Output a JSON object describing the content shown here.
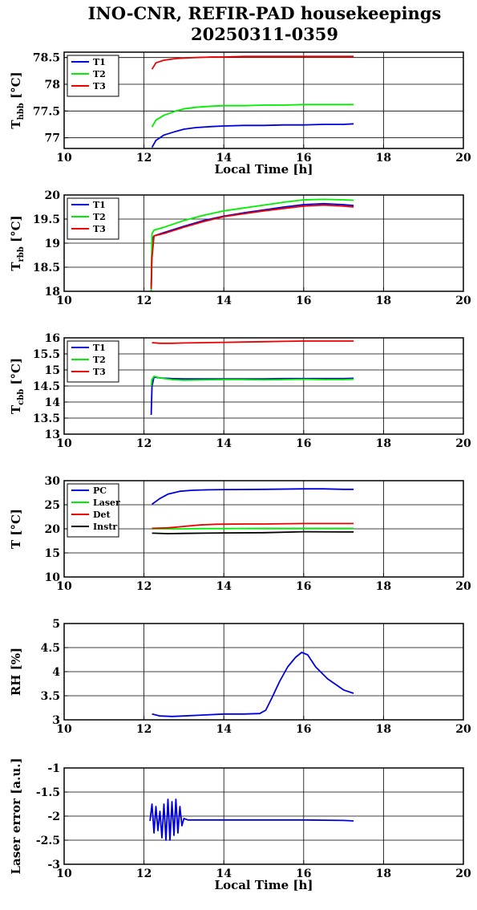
{
  "title_line1": "INO-CNR, REFIR-PAD housekeepings",
  "title_line2": "20250311-0359",
  "colors": {
    "blue": "#0000dd",
    "green": "#00ee00",
    "red": "#ee0000",
    "black": "#000000"
  },
  "chart_data": [
    {
      "type": "line",
      "ylabel": "T",
      "ylabel_sub": "hbb",
      "ylabel_unit": " [°C]",
      "xlabel": "Local Time [h]",
      "xlim": [
        10,
        20
      ],
      "ylim": [
        76.8,
        78.6
      ],
      "yticks": [
        77,
        77.5,
        78,
        78.5
      ],
      "ytick_labels": [
        "77",
        "77.5",
        "78",
        "78.5"
      ],
      "xticks": [
        10,
        12,
        14,
        16,
        18,
        20
      ],
      "xtick_labels": [
        "10",
        "12",
        "14",
        "16",
        "18",
        "20"
      ],
      "grid": true,
      "legend": "top-left",
      "series": [
        {
          "name": "T1",
          "color": "blue",
          "x": [
            12.2,
            12.3,
            12.5,
            12.8,
            13.0,
            13.3,
            13.7,
            14.0,
            14.5,
            15.0,
            15.5,
            16.0,
            16.5,
            17.0,
            17.25
          ],
          "values": [
            76.82,
            76.95,
            77.05,
            77.12,
            77.16,
            77.19,
            77.21,
            77.22,
            77.23,
            77.23,
            77.24,
            77.24,
            77.25,
            77.25,
            77.26
          ]
        },
        {
          "name": "T2",
          "color": "green",
          "x": [
            12.2,
            12.3,
            12.5,
            12.8,
            13.0,
            13.3,
            13.7,
            14.0,
            14.5,
            15.0,
            15.5,
            16.0,
            16.5,
            17.0,
            17.25
          ],
          "values": [
            77.2,
            77.33,
            77.42,
            77.5,
            77.54,
            77.57,
            77.59,
            77.6,
            77.6,
            77.61,
            77.61,
            77.62,
            77.62,
            77.62,
            77.62
          ]
        },
        {
          "name": "T3",
          "color": "red",
          "x": [
            12.2,
            12.3,
            12.5,
            12.8,
            13.0,
            13.3,
            13.7,
            14.0,
            14.5,
            15.0,
            15.5,
            16.0,
            16.5,
            17.0,
            17.25
          ],
          "values": [
            78.28,
            78.4,
            78.45,
            78.48,
            78.49,
            78.5,
            78.51,
            78.51,
            78.52,
            78.52,
            78.52,
            78.52,
            78.52,
            78.52,
            78.52
          ]
        }
      ]
    },
    {
      "type": "line",
      "ylabel": "T",
      "ylabel_sub": "rbb",
      "ylabel_unit": " [°C]",
      "xlabel": "",
      "xlim": [
        10,
        20
      ],
      "ylim": [
        18,
        20
      ],
      "yticks": [
        18,
        18.5,
        19,
        19.5,
        20
      ],
      "ytick_labels": [
        "18",
        "18.5",
        "19",
        "19.5",
        "20"
      ],
      "xticks": [
        10,
        12,
        14,
        16,
        18,
        20
      ],
      "xtick_labels": [
        "10",
        "12",
        "14",
        "16",
        "18",
        "20"
      ],
      "grid": true,
      "legend": "top-left",
      "series": [
        {
          "name": "T1",
          "color": "blue",
          "x": [
            12.18,
            12.2,
            12.25,
            12.5,
            13.0,
            13.5,
            14.0,
            14.5,
            15.0,
            15.5,
            16.0,
            16.5,
            17.0,
            17.25
          ],
          "values": [
            18.1,
            19.05,
            19.15,
            19.22,
            19.35,
            19.47,
            19.56,
            19.63,
            19.69,
            19.75,
            19.8,
            19.82,
            19.8,
            19.78
          ]
        },
        {
          "name": "T2",
          "color": "green",
          "x": [
            12.18,
            12.2,
            12.25,
            12.5,
            13.0,
            13.5,
            14.0,
            14.5,
            15.0,
            15.5,
            16.0,
            16.5,
            17.0,
            17.25
          ],
          "values": [
            18.0,
            19.2,
            19.27,
            19.33,
            19.47,
            19.58,
            19.67,
            19.73,
            19.79,
            19.85,
            19.9,
            19.91,
            19.9,
            19.89
          ]
        },
        {
          "name": "T3",
          "color": "red",
          "x": [
            12.18,
            12.2,
            12.25,
            12.5,
            13.0,
            13.5,
            14.0,
            14.5,
            15.0,
            15.5,
            16.0,
            16.5,
            17.0,
            17.25
          ],
          "values": [
            18.05,
            18.7,
            19.15,
            19.2,
            19.33,
            19.45,
            19.55,
            19.61,
            19.67,
            19.72,
            19.77,
            19.79,
            19.77,
            19.75
          ]
        }
      ]
    },
    {
      "type": "line",
      "ylabel": "T",
      "ylabel_sub": "cbb",
      "ylabel_unit": " [°C]",
      "xlabel": "",
      "xlim": [
        10,
        20
      ],
      "ylim": [
        13,
        16
      ],
      "yticks": [
        13,
        13.5,
        14,
        14.5,
        15,
        15.5,
        16
      ],
      "ytick_labels": [
        "13",
        "13.5",
        "14",
        "14.5",
        "15",
        "15.5",
        "16"
      ],
      "xticks": [
        10,
        12,
        14,
        16,
        18,
        20
      ],
      "xtick_labels": [
        "10",
        "12",
        "14",
        "16",
        "18",
        "20"
      ],
      "grid": true,
      "legend": "top-left",
      "series": [
        {
          "name": "T1",
          "color": "blue",
          "x": [
            12.18,
            12.2,
            12.25,
            12.4,
            12.7,
            13.0,
            13.5,
            14.0,
            14.5,
            15.0,
            15.5,
            16.0,
            16.5,
            17.0,
            17.25
          ],
          "values": [
            13.6,
            14.5,
            14.78,
            14.75,
            14.73,
            14.72,
            14.72,
            14.72,
            14.72,
            14.72,
            14.73,
            14.73,
            14.73,
            14.73,
            14.74
          ]
        },
        {
          "name": "T2",
          "color": "green",
          "x": [
            12.18,
            12.2,
            12.25,
            12.4,
            12.7,
            13.0,
            13.5,
            14.0,
            14.5,
            15.0,
            15.5,
            16.0,
            16.5,
            17.0,
            17.25
          ],
          "values": [
            14.5,
            14.7,
            14.8,
            14.75,
            14.7,
            14.68,
            14.69,
            14.7,
            14.7,
            14.69,
            14.7,
            14.71,
            14.7,
            14.7,
            14.71
          ]
        },
        {
          "name": "T3",
          "color": "red",
          "x": [
            12.2,
            12.4,
            12.7,
            13.0,
            13.5,
            14.0,
            14.5,
            15.0,
            15.5,
            16.0,
            16.5,
            17.0,
            17.25
          ],
          "values": [
            15.85,
            15.83,
            15.83,
            15.84,
            15.85,
            15.86,
            15.87,
            15.88,
            15.89,
            15.9,
            15.9,
            15.9,
            15.9
          ]
        }
      ]
    },
    {
      "type": "line",
      "ylabel": "T [°C]",
      "ylabel_sub": "",
      "ylabel_unit": "",
      "xlabel": "",
      "xlim": [
        10,
        20
      ],
      "ylim": [
        10,
        30
      ],
      "yticks": [
        10,
        15,
        20,
        25,
        30
      ],
      "ytick_labels": [
        "10",
        "15",
        "20",
        "25",
        "30"
      ],
      "xticks": [
        10,
        12,
        14,
        16,
        18,
        20
      ],
      "xtick_labels": [
        "10",
        "12",
        "14",
        "16",
        "18",
        "20"
      ],
      "grid": true,
      "legend": "top-left",
      "series": [
        {
          "name": "PC",
          "color": "blue",
          "x": [
            12.2,
            12.4,
            12.6,
            12.9,
            13.2,
            13.6,
            14.0,
            15.0,
            16.0,
            16.5,
            17.0,
            17.25
          ],
          "values": [
            25.1,
            26.3,
            27.2,
            27.8,
            28.0,
            28.1,
            28.15,
            28.2,
            28.3,
            28.3,
            28.2,
            28.2
          ]
        },
        {
          "name": "Laser",
          "color": "green",
          "x": [
            12.2,
            13.0,
            13.5,
            14.0,
            15.0,
            16.0,
            17.0,
            17.25
          ],
          "values": [
            20.0,
            20.0,
            20.05,
            20.05,
            20.1,
            20.1,
            20.1,
            20.1
          ]
        },
        {
          "name": "Det",
          "color": "red",
          "x": [
            12.2,
            12.6,
            13.0,
            13.4,
            13.8,
            14.5,
            15.0,
            16.0,
            17.0,
            17.25
          ],
          "values": [
            20.1,
            20.2,
            20.5,
            20.8,
            20.95,
            21.0,
            21.0,
            21.1,
            21.1,
            21.1
          ]
        },
        {
          "name": "Instr",
          "color": "black",
          "x": [
            12.2,
            12.6,
            13.0,
            13.5,
            14.0,
            15.0,
            16.0,
            17.0,
            17.25
          ],
          "values": [
            19.1,
            19.0,
            19.05,
            19.1,
            19.15,
            19.2,
            19.4,
            19.35,
            19.35
          ]
        }
      ]
    },
    {
      "type": "line",
      "ylabel": "RH [%]",
      "ylabel_sub": "",
      "ylabel_unit": "",
      "xlabel": "",
      "xlim": [
        10,
        20
      ],
      "ylim": [
        3,
        5
      ],
      "yticks": [
        3,
        3.5,
        4,
        4.5,
        5
      ],
      "ytick_labels": [
        "3",
        "3.5",
        "4",
        "4.5",
        "5"
      ],
      "xticks": [
        10,
        12,
        14,
        16,
        18,
        20
      ],
      "xtick_labels": [
        "10",
        "12",
        "14",
        "16",
        "18",
        "20"
      ],
      "grid": true,
      "legend": "",
      "series": [
        {
          "name": "",
          "color": "blue",
          "x": [
            12.2,
            12.4,
            12.7,
            13.0,
            13.5,
            14.0,
            14.5,
            14.9,
            15.05,
            15.2,
            15.4,
            15.6,
            15.8,
            15.95,
            16.1,
            16.3,
            16.6,
            17.0,
            17.25
          ],
          "values": [
            3.12,
            3.08,
            3.07,
            3.08,
            3.1,
            3.12,
            3.12,
            3.13,
            3.2,
            3.45,
            3.8,
            4.1,
            4.3,
            4.4,
            4.35,
            4.1,
            3.85,
            3.62,
            3.55
          ]
        }
      ]
    },
    {
      "type": "line",
      "ylabel": "Laser error [a.u.]",
      "ylabel_sub": "",
      "ylabel_unit": "",
      "xlabel": "Local Time [h]",
      "xlim": [
        10,
        20
      ],
      "ylim": [
        -3,
        -1
      ],
      "yticks": [
        -3,
        -2.5,
        -2,
        -1.5,
        -1
      ],
      "ytick_labels": [
        "-3",
        "-2.5",
        "-2",
        "-1.5",
        "-1"
      ],
      "xticks": [
        10,
        12,
        14,
        16,
        18,
        20
      ],
      "xtick_labels": [
        "10",
        "12",
        "14",
        "16",
        "18",
        "20"
      ],
      "grid": true,
      "legend": "",
      "series": [
        {
          "name": "",
          "color": "blue",
          "x": [
            12.15,
            12.2,
            12.25,
            12.3,
            12.35,
            12.4,
            12.45,
            12.5,
            12.55,
            12.6,
            12.65,
            12.7,
            12.75,
            12.8,
            12.85,
            12.9,
            12.95,
            13.0,
            13.1,
            13.5,
            14.0,
            15.0,
            16.0,
            17.0,
            17.25
          ],
          "values": [
            -2.1,
            -1.75,
            -2.35,
            -1.8,
            -2.3,
            -1.9,
            -2.45,
            -1.75,
            -2.5,
            -1.65,
            -2.5,
            -1.7,
            -2.4,
            -1.65,
            -2.35,
            -1.8,
            -2.2,
            -2.05,
            -2.08,
            -2.08,
            -2.08,
            -2.08,
            -2.08,
            -2.09,
            -2.1
          ]
        }
      ]
    }
  ]
}
